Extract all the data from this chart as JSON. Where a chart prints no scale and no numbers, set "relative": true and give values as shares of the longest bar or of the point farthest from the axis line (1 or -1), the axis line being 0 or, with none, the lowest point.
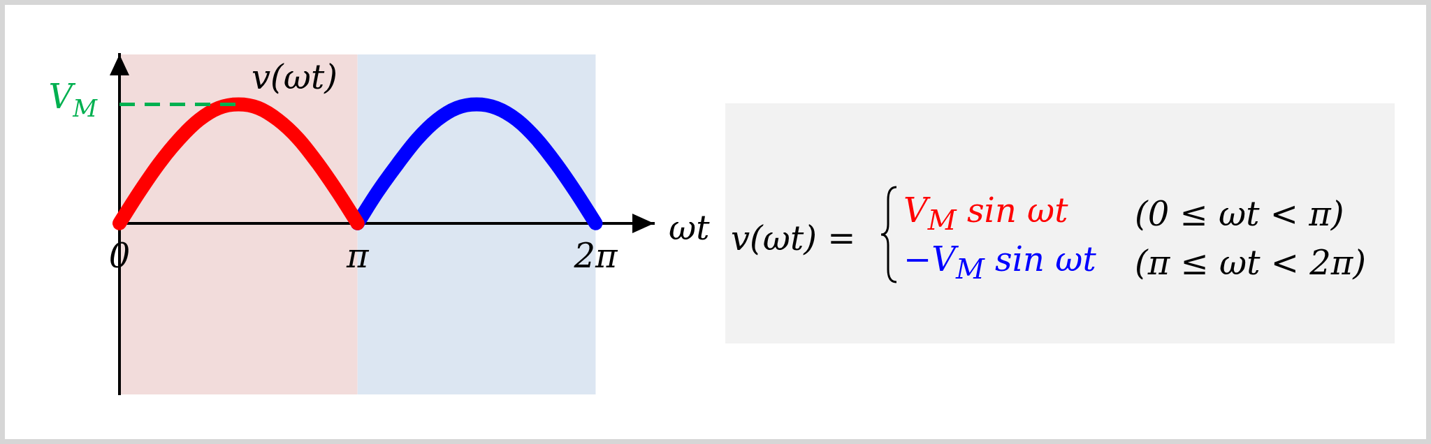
{
  "chart_data": [
    {
      "type": "line",
      "xlabel": "ωt",
      "ylabel": "v(ωt)",
      "relative": true,
      "tick_labels": "x",
      "xlim": [
        0,
        7.05
      ],
      "xticks": [
        0,
        {
          "value": 3.14,
          "label": "π"
        },
        {
          "value": 6.28,
          "label": "2π"
        }
      ],
      "series": [
        {
          "color": "#ff0000",
          "x": [
            0,
            0.26,
            0.52,
            0.79,
            1.05,
            1.31,
            1.57,
            1.83,
            2.09,
            2.36,
            2.62,
            2.88,
            3.14
          ],
          "values": [
            0,
            0.26,
            0.5,
            0.71,
            0.87,
            0.97,
            1,
            0.97,
            0.87,
            0.71,
            0.5,
            0.26,
            0
          ]
        },
        {
          "color": "#0000ff",
          "x": [
            3.14,
            3.4,
            3.67,
            3.93,
            4.19,
            4.45,
            4.71,
            4.97,
            5.24,
            5.5,
            5.76,
            6.02,
            6.28
          ],
          "values": [
            0,
            0.26,
            0.5,
            0.71,
            0.87,
            0.97,
            1,
            0.97,
            0.87,
            0.71,
            0.5,
            0.26,
            0
          ]
        }
      ],
      "ref_lines": [
        {
          "axis": "y",
          "value": 1,
          "label": "V$_{M}$",
          "color": "#00b050",
          "line_style": "dashed"
        }
      ],
      "bands": [
        {
          "axis": "x",
          "from": 0,
          "to": 3.14,
          "color": "#f2dcdb"
        },
        {
          "axis": "x",
          "from": 3.14,
          "to": 6.28,
          "color": "#dce6f2"
        }
      ]
    },
    {
      "type": "other",
      "annotations": [
        "v(ωt) =",
        "V$_{M}$ sin ωt",
        "(0 ≤ ωt < π)",
        "−V$_{M}$ sin ωt",
        "(π ≤ ωt < 2π)"
      ]
    }
  ]
}
